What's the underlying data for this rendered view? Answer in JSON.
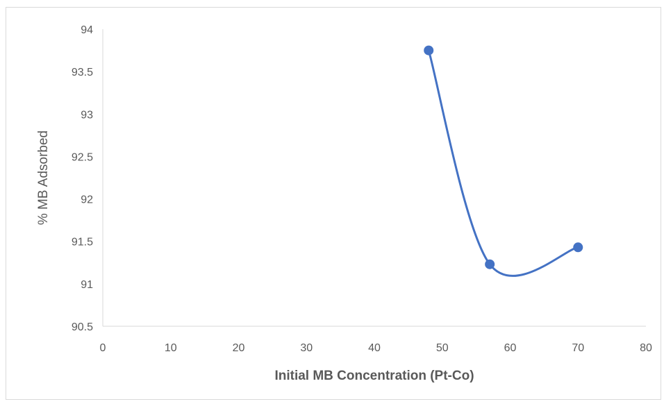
{
  "chart_data": {
    "type": "scatter",
    "title": "",
    "xlabel": "Initial MB Concentration (Pt-Co)",
    "ylabel": "% MB Adsorbed",
    "xlim": [
      0,
      80
    ],
    "ylim": [
      90.5,
      94
    ],
    "x_ticks": [
      "0",
      "10",
      "20",
      "30",
      "40",
      "50",
      "60",
      "70",
      "80"
    ],
    "y_ticks": [
      "90.5",
      "91",
      "91.5",
      "92",
      "92.5",
      "93",
      "93.5",
      "94"
    ],
    "grid": false,
    "legend": "none",
    "series": [
      {
        "line_style": "smooth",
        "marker": "circle",
        "color": "#4472c4",
        "points": [
          {
            "x": 48,
            "y": 93.75
          },
          {
            "x": 57,
            "y": 91.23
          },
          {
            "x": 70,
            "y": 91.43
          }
        ]
      }
    ]
  }
}
